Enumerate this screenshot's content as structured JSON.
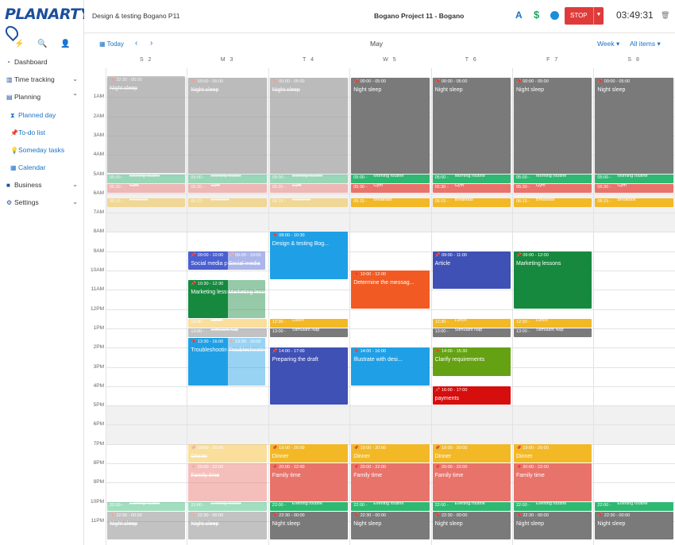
{
  "app": {
    "logo": "PLANARTY"
  },
  "sidebar": {
    "quick_icons": [
      "lightning-icon",
      "search-icon",
      "add-user-icon"
    ],
    "items": [
      {
        "label": "Dashboard",
        "icon": "dashboard-icon"
      },
      {
        "label": "Time tracking",
        "icon": "bar-chart-icon"
      },
      {
        "label": "Planning",
        "icon": "planning-icon"
      },
      {
        "label": "Planned day",
        "icon": "hourglass-icon"
      },
      {
        "label": "To-do list",
        "icon": "pin-icon"
      },
      {
        "label": "Someday tasks",
        "icon": "lightbulb-icon"
      },
      {
        "label": "Calendar",
        "icon": "calendar-icon"
      },
      {
        "label": "Business",
        "icon": "briefcase-icon"
      },
      {
        "label": "Settings",
        "icon": "gear-icon"
      }
    ]
  },
  "topbar": {
    "task_title": "Design & testing Bogano P11",
    "project": "Bogano Project 11 - Bogano",
    "a_label": "A",
    "dollar_label": "$",
    "stop_label": "STOP",
    "timer": "03:49:31"
  },
  "calendar": {
    "today_label": "Today",
    "month": "May",
    "view": "Week",
    "filter": "All items",
    "days": [
      "S 2",
      "M 3",
      "T 4",
      "W 5",
      "T 6",
      "F 7",
      "S 8"
    ],
    "hours": [
      "1AM",
      "2AM",
      "3AM",
      "4AM",
      "5AM",
      "6AM",
      "7AM",
      "8AM",
      "9AM",
      "10AM",
      "11AM",
      "12PM",
      "1PM",
      "2PM",
      "3PM",
      "4PM",
      "5PM",
      "6PM",
      "7PM",
      "8PM",
      "9PM",
      "10PM",
      "11PM"
    ]
  },
  "events": [
    {
      "day": 0,
      "start": -0.07,
      "end": 5.0,
      "time": "22:30 - 05:00",
      "title": "Night sleep",
      "color": "#7a7a7a",
      "faded": true
    },
    {
      "day": 1,
      "start": 0,
      "end": 5.0,
      "time": "00:00 - 05:00",
      "title": "Night sleep",
      "color": "#7a7a7a",
      "faded": true
    },
    {
      "day": 2,
      "start": 0,
      "end": 5.0,
      "time": "00:00 - 05:00",
      "title": "Night sleep",
      "color": "#7a7a7a",
      "faded": true
    },
    {
      "day": 3,
      "start": 0,
      "end": 5.0,
      "time": "00:00 - 05:00",
      "title": "Night sleep",
      "color": "#7a7a7a"
    },
    {
      "day": 4,
      "start": 0,
      "end": 5.0,
      "time": "00:00 - 05:00",
      "title": "Night sleep",
      "color": "#7a7a7a"
    },
    {
      "day": 5,
      "start": 0,
      "end": 5.0,
      "time": "00:00 - 05:00",
      "title": "Night sleep",
      "color": "#7a7a7a"
    },
    {
      "day": 6,
      "start": 0,
      "end": 5.0,
      "time": "00:00 - 05:00",
      "title": "Night sleep",
      "color": "#7a7a7a"
    },
    {
      "day": 0,
      "start": 5.0,
      "end": 5.5,
      "time": "05:00",
      "title": "Morning routine",
      "color": "#2eb872",
      "small": true,
      "faded": true
    },
    {
      "day": 1,
      "start": 5.0,
      "end": 5.5,
      "time": "05:00",
      "title": "Morning routine",
      "color": "#2eb872",
      "small": true,
      "faded": true
    },
    {
      "day": 2,
      "start": 5.0,
      "end": 5.5,
      "time": "05:00",
      "title": "Morning routine",
      "color": "#2eb872",
      "small": true,
      "faded": true
    },
    {
      "day": 3,
      "start": 5.0,
      "end": 5.5,
      "time": "05:00",
      "title": "Morning routine",
      "color": "#2eb872",
      "small": true
    },
    {
      "day": 4,
      "start": 5.0,
      "end": 5.5,
      "time": "05:00",
      "title": "Morning routine",
      "color": "#2eb872",
      "small": true
    },
    {
      "day": 5,
      "start": 5.0,
      "end": 5.5,
      "time": "05:00",
      "title": "Morning routine",
      "color": "#2eb872",
      "small": true
    },
    {
      "day": 6,
      "start": 5.0,
      "end": 5.5,
      "time": "05:00",
      "title": "Morning routine",
      "color": "#2eb872",
      "small": true
    },
    {
      "day": 0,
      "start": 5.5,
      "end": 6.0,
      "time": "05:30",
      "title": "Gym",
      "color": "#e8736b",
      "small": true,
      "faded": true
    },
    {
      "day": 1,
      "start": 5.5,
      "end": 6.0,
      "time": "05:30",
      "title": "Gym",
      "color": "#e8736b",
      "small": true,
      "faded": true
    },
    {
      "day": 2,
      "start": 5.5,
      "end": 6.0,
      "time": "05:30",
      "title": "Gym",
      "color": "#e8736b",
      "small": true,
      "faded": true
    },
    {
      "day": 3,
      "start": 5.5,
      "end": 6.0,
      "time": "05:30",
      "title": "Gym",
      "color": "#e8736b",
      "small": true
    },
    {
      "day": 4,
      "start": 5.5,
      "end": 6.0,
      "time": "05:30",
      "title": "Gym",
      "color": "#e8736b",
      "small": true
    },
    {
      "day": 5,
      "start": 5.5,
      "end": 6.0,
      "time": "05:30",
      "title": "Gym",
      "color": "#e8736b",
      "small": true
    },
    {
      "day": 6,
      "start": 5.5,
      "end": 6.0,
      "time": "05:30",
      "title": "Gym",
      "color": "#e8736b",
      "small": true
    },
    {
      "day": 0,
      "start": 6.25,
      "end": 6.75,
      "time": "06:15",
      "title": "Breakfast",
      "color": "#f2b826",
      "small": true,
      "faded": true
    },
    {
      "day": 1,
      "start": 6.25,
      "end": 6.75,
      "time": "06:15",
      "title": "Breakfast",
      "color": "#f2b826",
      "small": true,
      "faded": true
    },
    {
      "day": 2,
      "start": 6.25,
      "end": 6.75,
      "time": "06:15",
      "title": "Breakfast",
      "color": "#f2b826",
      "small": true,
      "faded": true
    },
    {
      "day": 3,
      "start": 6.25,
      "end": 6.75,
      "time": "06:15",
      "title": "Breakfast",
      "color": "#f2b826",
      "small": true
    },
    {
      "day": 4,
      "start": 6.25,
      "end": 6.75,
      "time": "06:15",
      "title": "Breakfast",
      "color": "#f2b826",
      "small": true
    },
    {
      "day": 5,
      "start": 6.25,
      "end": 6.75,
      "time": "06:15",
      "title": "Breakfast",
      "color": "#f2b826",
      "small": true
    },
    {
      "day": 6,
      "start": 6.25,
      "end": 6.75,
      "time": "06:15",
      "title": "Breakfast",
      "color": "#f2b826",
      "small": true
    },
    {
      "day": 1,
      "start": 9.0,
      "end": 10.0,
      "time": "09:00 - 10:00",
      "title": "Social media post",
      "color": "#4a5fd0",
      "w": 0.5
    },
    {
      "day": 1,
      "start": 9.0,
      "end": 10.0,
      "time": "09:00 - 10:00",
      "title": "Social media",
      "color": "#4a5fd0",
      "w": 0.5,
      "x": 0.48,
      "faded": true
    },
    {
      "day": 2,
      "start": 8.0,
      "end": 10.5,
      "time": "08:00 - 10:30",
      "title": "Design & testing Bog...",
      "color": "#1fa0e6"
    },
    {
      "day": 3,
      "start": 10.0,
      "end": 12.0,
      "time": "10:00 - 12:00",
      "title": "Determine the messag...",
      "color": "#f15a22"
    },
    {
      "day": 4,
      "start": 9.0,
      "end": 11.0,
      "time": "09:00 - 11:00",
      "title": "Article",
      "color": "#3f51b5"
    },
    {
      "day": 5,
      "start": 9.0,
      "end": 12.0,
      "time": "09:00 - 12:00",
      "title": "Marketing lessons",
      "color": "#17893f"
    },
    {
      "day": 1,
      "start": 10.5,
      "end": 12.5,
      "time": "10:30 - 12:30",
      "title": "Marketing lessons",
      "color": "#17893f",
      "w": 0.5
    },
    {
      "day": 1,
      "start": 10.5,
      "end": 12.5,
      "time": "",
      "title": "Marketing lessons",
      "color": "#17893f",
      "w": 0.5,
      "x": 0.48,
      "faded": true
    },
    {
      "day": 1,
      "start": 12.5,
      "end": 13.0,
      "time": "12:30",
      "title": "Lunch",
      "color": "#f2b826",
      "small": true,
      "faded": true
    },
    {
      "day": 2,
      "start": 12.5,
      "end": 13.0,
      "time": "12:30",
      "title": "Lunch",
      "color": "#f2b826",
      "small": true
    },
    {
      "day": 4,
      "start": 12.5,
      "end": 13.0,
      "time": "12:30",
      "title": "Lunch",
      "color": "#f2b826",
      "small": true
    },
    {
      "day": 5,
      "start": 12.5,
      "end": 13.0,
      "time": "12:30",
      "title": "Lunch",
      "color": "#f2b826",
      "small": true
    },
    {
      "day": 1,
      "start": 13.0,
      "end": 13.5,
      "time": "13:00",
      "title": "Stimulant Nap",
      "color": "#7a7a7a",
      "small": true,
      "faded": true
    },
    {
      "day": 2,
      "start": 13.0,
      "end": 13.5,
      "time": "13:00",
      "title": "Stimulant Nap",
      "color": "#7a7a7a",
      "small": true
    },
    {
      "day": 4,
      "start": 13.0,
      "end": 13.5,
      "time": "13:00",
      "title": "Stimulant Nap",
      "color": "#7a7a7a",
      "small": true
    },
    {
      "day": 5,
      "start": 13.0,
      "end": 13.5,
      "time": "13:00",
      "title": "Stimulant Nap",
      "color": "#7a7a7a",
      "small": true
    },
    {
      "day": 1,
      "start": 13.5,
      "end": 16.0,
      "time": "13:30 - 16:00",
      "title": "Troubleshooting",
      "color": "#1fa0e6",
      "w": 0.5
    },
    {
      "day": 1,
      "start": 13.5,
      "end": 16.0,
      "time": "13:30 - 16:00",
      "title": "Troubleshooting syst...",
      "color": "#1fa0e6",
      "w": 0.5,
      "x": 0.48,
      "faded": true
    },
    {
      "day": 2,
      "start": 14.0,
      "end": 17.0,
      "time": "14:00 - 17:00",
      "title": "Preparing the draft",
      "color": "#3f51b5"
    },
    {
      "day": 3,
      "start": 14.0,
      "end": 16.0,
      "time": "14:00 - 16:00",
      "title": "Illustrate with desi...",
      "color": "#1fa0e6"
    },
    {
      "day": 4,
      "start": 14.0,
      "end": 15.5,
      "time": "14:00 - 15:30",
      "title": "Clarify requirements",
      "color": "#64a214"
    },
    {
      "day": 4,
      "start": 16.0,
      "end": 17.0,
      "time": "16:00 - 17:00",
      "title": "payments",
      "color": "#d60e0e"
    },
    {
      "day": 1,
      "start": 19.0,
      "end": 20.0,
      "time": "19:00 - 20:00",
      "title": "Dinner",
      "color": "#f2b826",
      "faded": true
    },
    {
      "day": 2,
      "start": 19.0,
      "end": 20.0,
      "time": "19:00 - 20:00",
      "title": "Dinner",
      "color": "#f2b826"
    },
    {
      "day": 3,
      "start": 19.0,
      "end": 20.0,
      "time": "19:00 - 20:00",
      "title": "Dinner",
      "color": "#f2b826"
    },
    {
      "day": 4,
      "start": 19.0,
      "end": 20.0,
      "time": "19:00 - 20:00",
      "title": "Dinner",
      "color": "#f2b826"
    },
    {
      "day": 5,
      "start": 19.0,
      "end": 20.0,
      "time": "19:00 - 20:00",
      "title": "Dinner",
      "color": "#f2b826"
    },
    {
      "day": 1,
      "start": 20.0,
      "end": 22.0,
      "time": "20:00 - 22:00",
      "title": "Family time",
      "color": "#e8736b",
      "faded": true
    },
    {
      "day": 2,
      "start": 20.0,
      "end": 22.0,
      "time": "20:00 - 22:00",
      "title": "Family time",
      "color": "#e8736b"
    },
    {
      "day": 3,
      "start": 20.0,
      "end": 22.0,
      "time": "20:00 - 22:00",
      "title": "Family time",
      "color": "#e8736b"
    },
    {
      "day": 4,
      "start": 20.0,
      "end": 22.0,
      "time": "20:00 - 22:00",
      "title": "Family time",
      "color": "#e8736b"
    },
    {
      "day": 5,
      "start": 20.0,
      "end": 22.0,
      "time": "20:00 - 22:00",
      "title": "Family time",
      "color": "#e8736b"
    },
    {
      "day": 0,
      "start": 22.0,
      "end": 22.5,
      "time": "22:00",
      "title": "Evening routine",
      "color": "#2eb872",
      "small": true,
      "faded": true
    },
    {
      "day": 1,
      "start": 22.0,
      "end": 22.5,
      "time": "22:00",
      "title": "Evening routine",
      "color": "#2eb872",
      "small": true,
      "faded": true
    },
    {
      "day": 2,
      "start": 22.0,
      "end": 22.5,
      "time": "22:00",
      "title": "Evening routine",
      "color": "#2eb872",
      "small": true
    },
    {
      "day": 3,
      "start": 22.0,
      "end": 22.5,
      "time": "22:00",
      "title": "Evening routine",
      "color": "#2eb872",
      "small": true
    },
    {
      "day": 4,
      "start": 22.0,
      "end": 22.5,
      "time": "22:00",
      "title": "Evening routine",
      "color": "#2eb872",
      "small": true
    },
    {
      "day": 5,
      "start": 22.0,
      "end": 22.5,
      "time": "22:00",
      "title": "Evening routine",
      "color": "#2eb872",
      "small": true
    },
    {
      "day": 6,
      "start": 22.0,
      "end": 22.5,
      "time": "22:00",
      "title": "Evening routine",
      "color": "#2eb872",
      "small": true
    },
    {
      "day": 0,
      "start": 22.5,
      "end": 24.0,
      "time": "22:30 - 00:00",
      "title": "Night sleep",
      "color": "#7a7a7a",
      "faded": true
    },
    {
      "day": 1,
      "start": 22.5,
      "end": 24.0,
      "time": "22:30 - 00:00",
      "title": "Night sleep",
      "color": "#7a7a7a",
      "faded": true
    },
    {
      "day": 2,
      "start": 22.5,
      "end": 24.0,
      "time": "22:30 - 00:00",
      "title": "Night sleep",
      "color": "#7a7a7a"
    },
    {
      "day": 3,
      "start": 22.5,
      "end": 24.0,
      "time": "22:30 - 00:00",
      "title": "Night sleep",
      "color": "#7a7a7a"
    },
    {
      "day": 4,
      "start": 22.5,
      "end": 24.0,
      "time": "22:30 - 00:00",
      "title": "Night sleep",
      "color": "#7a7a7a"
    },
    {
      "day": 5,
      "start": 22.5,
      "end": 24.0,
      "time": "22:30 - 00:00",
      "title": "Night sleep",
      "color": "#7a7a7a"
    },
    {
      "day": 6,
      "start": 22.5,
      "end": 24.0,
      "time": "22:30 - 00:00",
      "title": "Night sleep",
      "color": "#7a7a7a"
    }
  ]
}
